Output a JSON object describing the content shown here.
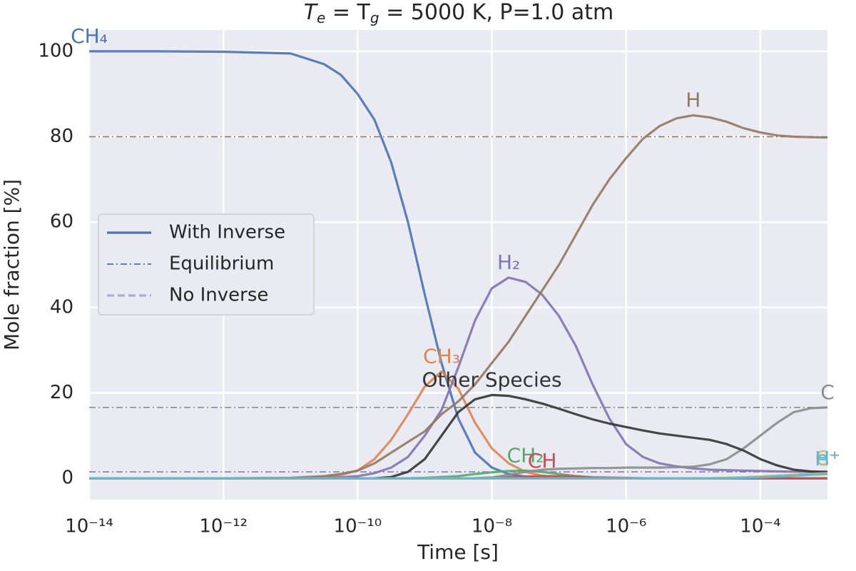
{
  "chart_data": {
    "type": "line",
    "title": [
      "T",
      "e",
      " = T",
      "g",
      " = 5000 K, P=1.0 atm"
    ],
    "x_label": "Time [s]",
    "y_label": "Mole fraction [%]",
    "log_x": true,
    "grid": true,
    "xlim": [
      1e-14,
      0.001
    ],
    "ylim": [
      -5,
      105
    ],
    "xticks": [
      {
        "value": 1e-14,
        "label": "10⁻¹⁴"
      },
      {
        "value": 1e-12,
        "label": "10⁻¹²"
      },
      {
        "value": 1e-10,
        "label": "10⁻¹⁰"
      },
      {
        "value": 1e-08,
        "label": "10⁻⁸"
      },
      {
        "value": 1e-06,
        "label": "10⁻⁶"
      },
      {
        "value": 0.0001,
        "label": "10⁻⁴"
      }
    ],
    "yticks": [
      0,
      20,
      40,
      60,
      80,
      100
    ],
    "legend": {
      "loc": "center left",
      "entries": [
        {
          "name": "With Inverse",
          "color": "#4c72b0",
          "style": "solid"
        },
        {
          "name": "Equilibrium",
          "color": "#4c72b0",
          "style": "dashdot"
        },
        {
          "name": "No Inverse",
          "color": "#a1b1d6",
          "style": "dashed"
        }
      ]
    },
    "x": [
      1e-14,
      1e-13,
      1e-12,
      1e-11,
      3.16e-11,
      5.62e-11,
      1e-10,
      1.78e-10,
      3.16e-10,
      5.62e-10,
      1e-09,
      1.78e-09,
      3.16e-09,
      5.62e-09,
      1e-08,
      1.78e-08,
      3.16e-08,
      5.62e-08,
      1e-07,
      1.78e-07,
      3.16e-07,
      5.62e-07,
      1e-06,
      1.78e-06,
      3.16e-06,
      5.62e-06,
      1e-05,
      1.78e-05,
      3.16e-05,
      5.62e-05,
      0.0001,
      0.000178,
      0.000316,
      0.000562,
      0.001
    ],
    "series": [
      {
        "name": "CH₄",
        "color": "#4c72b0",
        "equilibrium": 0,
        "values": [
          100,
          100,
          99.9,
          99.5,
          97,
          94.5,
          90,
          84,
          74,
          60,
          43,
          27,
          14,
          6,
          2.5,
          1,
          0.4,
          0.1,
          0,
          0,
          0,
          0,
          0,
          0,
          0,
          0,
          0,
          0,
          0,
          0,
          0,
          0,
          0,
          0,
          0
        ]
      },
      {
        "name": "CH₃",
        "color": "#dd8452",
        "values": [
          0,
          0,
          0,
          0,
          0.3,
          0.8,
          1.8,
          4.5,
          9,
          15,
          21.5,
          25,
          21,
          13,
          7,
          3.5,
          1.5,
          0.6,
          0.2,
          0,
          0,
          0,
          0,
          0,
          0,
          0,
          0,
          0,
          0,
          0,
          0,
          0,
          0,
          0,
          0
        ]
      },
      {
        "name": "H₂",
        "color": "#8172b3",
        "equilibrium": 1.5,
        "values": [
          0,
          0,
          0,
          0,
          0.1,
          0.25,
          0.5,
          1.2,
          2.5,
          5,
          10,
          16,
          26,
          37,
          44.5,
          47,
          46,
          43,
          38,
          31,
          22,
          14,
          8,
          5,
          3.5,
          2.8,
          2.3,
          2,
          1.9,
          1.8,
          1.7,
          1.6,
          1.55,
          1.5,
          1.5
        ]
      },
      {
        "name": "CH₂",
        "color": "#55a868",
        "values": [
          0,
          0,
          0,
          0,
          0,
          0,
          0,
          0,
          0,
          0,
          0.1,
          0.3,
          0.5,
          1,
          1.4,
          1.7,
          1.8,
          1.5,
          1,
          0.5,
          0.2,
          0.1,
          0,
          0,
          0,
          0,
          0,
          0,
          0,
          0,
          0,
          0,
          0,
          0,
          0
        ]
      },
      {
        "name": "CH",
        "color": "#c44e52",
        "values": [
          0,
          0,
          0,
          0,
          0,
          0,
          0,
          0,
          0,
          0,
          0,
          0,
          0,
          0,
          0.1,
          0.3,
          0.4,
          0.5,
          0.5,
          0.4,
          0.2,
          0.15,
          0.1,
          0,
          0,
          0,
          0,
          0,
          0,
          0,
          0,
          0,
          0,
          0,
          0
        ]
      },
      {
        "name": "H",
        "color": "#937860",
        "equilibrium": 80,
        "values": [
          0,
          0,
          0,
          0.1,
          0.5,
          1,
          1.8,
          3.5,
          6,
          8.5,
          11,
          15,
          18,
          22,
          27,
          32,
          38,
          44,
          50,
          57,
          64,
          70,
          75,
          79.5,
          82.5,
          84.3,
          85,
          84.5,
          83.5,
          82,
          81,
          80.3,
          80,
          79.9,
          79.8
        ]
      },
      {
        "name": "C",
        "color": "#8c8c8c",
        "equilibrium": 16.6,
        "values": [
          0,
          0,
          0,
          0,
          0,
          0,
          0,
          0,
          0,
          0,
          0,
          0,
          0,
          0,
          0.2,
          0.8,
          1.5,
          2,
          2.2,
          2.3,
          2.4,
          2.4,
          2.5,
          2.5,
          2.5,
          2.6,
          2.7,
          3.3,
          4.5,
          7,
          10,
          13,
          15.5,
          16.4,
          16.6
        ]
      },
      {
        "name": "Other Species",
        "color": "#333333",
        "values": [
          0,
          0,
          0,
          0,
          0,
          0,
          0,
          0,
          0.3,
          1.5,
          4.5,
          10,
          15.5,
          18.5,
          19.5,
          19.3,
          18.5,
          17.5,
          16.3,
          15,
          13.8,
          12.8,
          12,
          11.2,
          10.5,
          10,
          9.5,
          9,
          8,
          6.5,
          4.5,
          3,
          2,
          1.6,
          1.5
        ]
      },
      {
        "name": "e⁻",
        "color": "#64b5cd",
        "values": [
          0,
          0,
          0,
          0,
          0,
          0,
          0,
          0,
          0,
          0,
          0,
          0,
          0,
          0,
          0,
          0,
          0,
          0,
          0,
          0,
          0,
          0,
          0,
          0,
          0,
          0,
          0,
          0,
          0.1,
          0.2,
          0.4,
          0.6,
          0.8,
          1,
          1.1
        ]
      },
      {
        "name": "C⁺",
        "color": "#ccb974",
        "values": [
          0,
          0,
          0,
          0,
          0,
          0,
          0,
          0,
          0,
          0,
          0,
          0,
          0,
          0,
          0,
          0,
          0,
          0,
          0,
          0,
          0,
          0,
          0,
          0,
          0,
          0,
          0,
          0,
          0.1,
          0.2,
          0.4,
          0.6,
          0.8,
          1,
          1.2
        ]
      },
      {
        "name": "H⁺",
        "color": "#64b5cd",
        "values": [
          0,
          0,
          0,
          0,
          0,
          0,
          0,
          0,
          0,
          0,
          0,
          0,
          0,
          0,
          0,
          0,
          0,
          0,
          0,
          0,
          0,
          0,
          0,
          0,
          0,
          0,
          0,
          0,
          0,
          0.1,
          0.2,
          0.4,
          0.6,
          0.8,
          1
        ]
      }
    ]
  }
}
